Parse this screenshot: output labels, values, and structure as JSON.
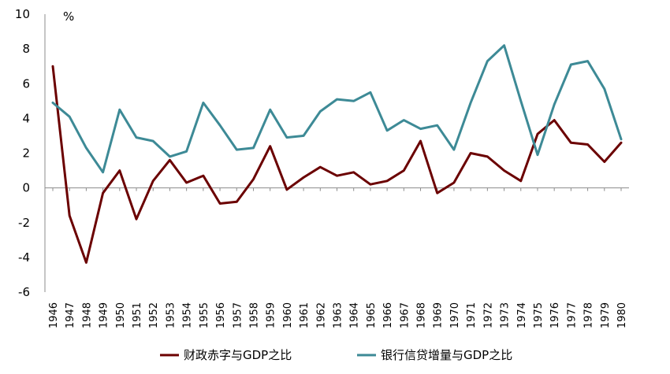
{
  "chart_data": {
    "type": "line",
    "title": "",
    "xlabel": "",
    "ylabel": "%",
    "ylim": [
      -6,
      10
    ],
    "yticks": [
      -6,
      -4,
      -2,
      0,
      2,
      4,
      6,
      8,
      10
    ],
    "ytick_labels": [
      "-6",
      "-4",
      "-2",
      "0",
      "2",
      "4",
      "6",
      "8",
      "10"
    ],
    "negative_tick_color": "#ff0000",
    "grid": false,
    "legend_position": "bottom",
    "categories": [
      "1946",
      "1947",
      "1948",
      "1949",
      "1950",
      "1951",
      "1952",
      "1953",
      "1954",
      "1955",
      "1956",
      "1957",
      "1958",
      "1959",
      "1960",
      "1961",
      "1962",
      "1963",
      "1964",
      "1965",
      "1966",
      "1967",
      "1968",
      "1969",
      "1970",
      "1971",
      "1972",
      "1973",
      "1974",
      "1975",
      "1976",
      "1977",
      "1978",
      "1979",
      "1980"
    ],
    "series": [
      {
        "name": "财政赤字与GDP之比",
        "color": "#6b0000",
        "values": [
          7.0,
          -1.6,
          -4.3,
          -0.3,
          1.0,
          -1.8,
          0.4,
          1.6,
          0.3,
          0.7,
          -0.9,
          -0.8,
          0.5,
          2.4,
          -0.1,
          0.6,
          1.2,
          0.7,
          0.9,
          0.2,
          0.4,
          1.0,
          2.7,
          -0.3,
          0.3,
          2.0,
          1.8,
          1.0,
          0.4,
          3.1,
          3.9,
          2.6,
          2.5,
          1.5,
          2.6
        ]
      },
      {
        "name": "银行信贷增量与GDP之比",
        "color": "#3d8a96",
        "values": [
          4.9,
          4.1,
          2.3,
          0.9,
          4.5,
          2.9,
          2.7,
          1.8,
          2.1,
          4.9,
          3.6,
          2.2,
          2.3,
          4.5,
          2.9,
          3.0,
          4.4,
          5.1,
          5.0,
          5.5,
          3.3,
          3.9,
          3.4,
          3.6,
          2.2,
          4.9,
          7.3,
          8.2,
          5.0,
          1.9,
          4.8,
          7.1,
          7.3,
          5.7,
          2.8
        ]
      }
    ]
  }
}
